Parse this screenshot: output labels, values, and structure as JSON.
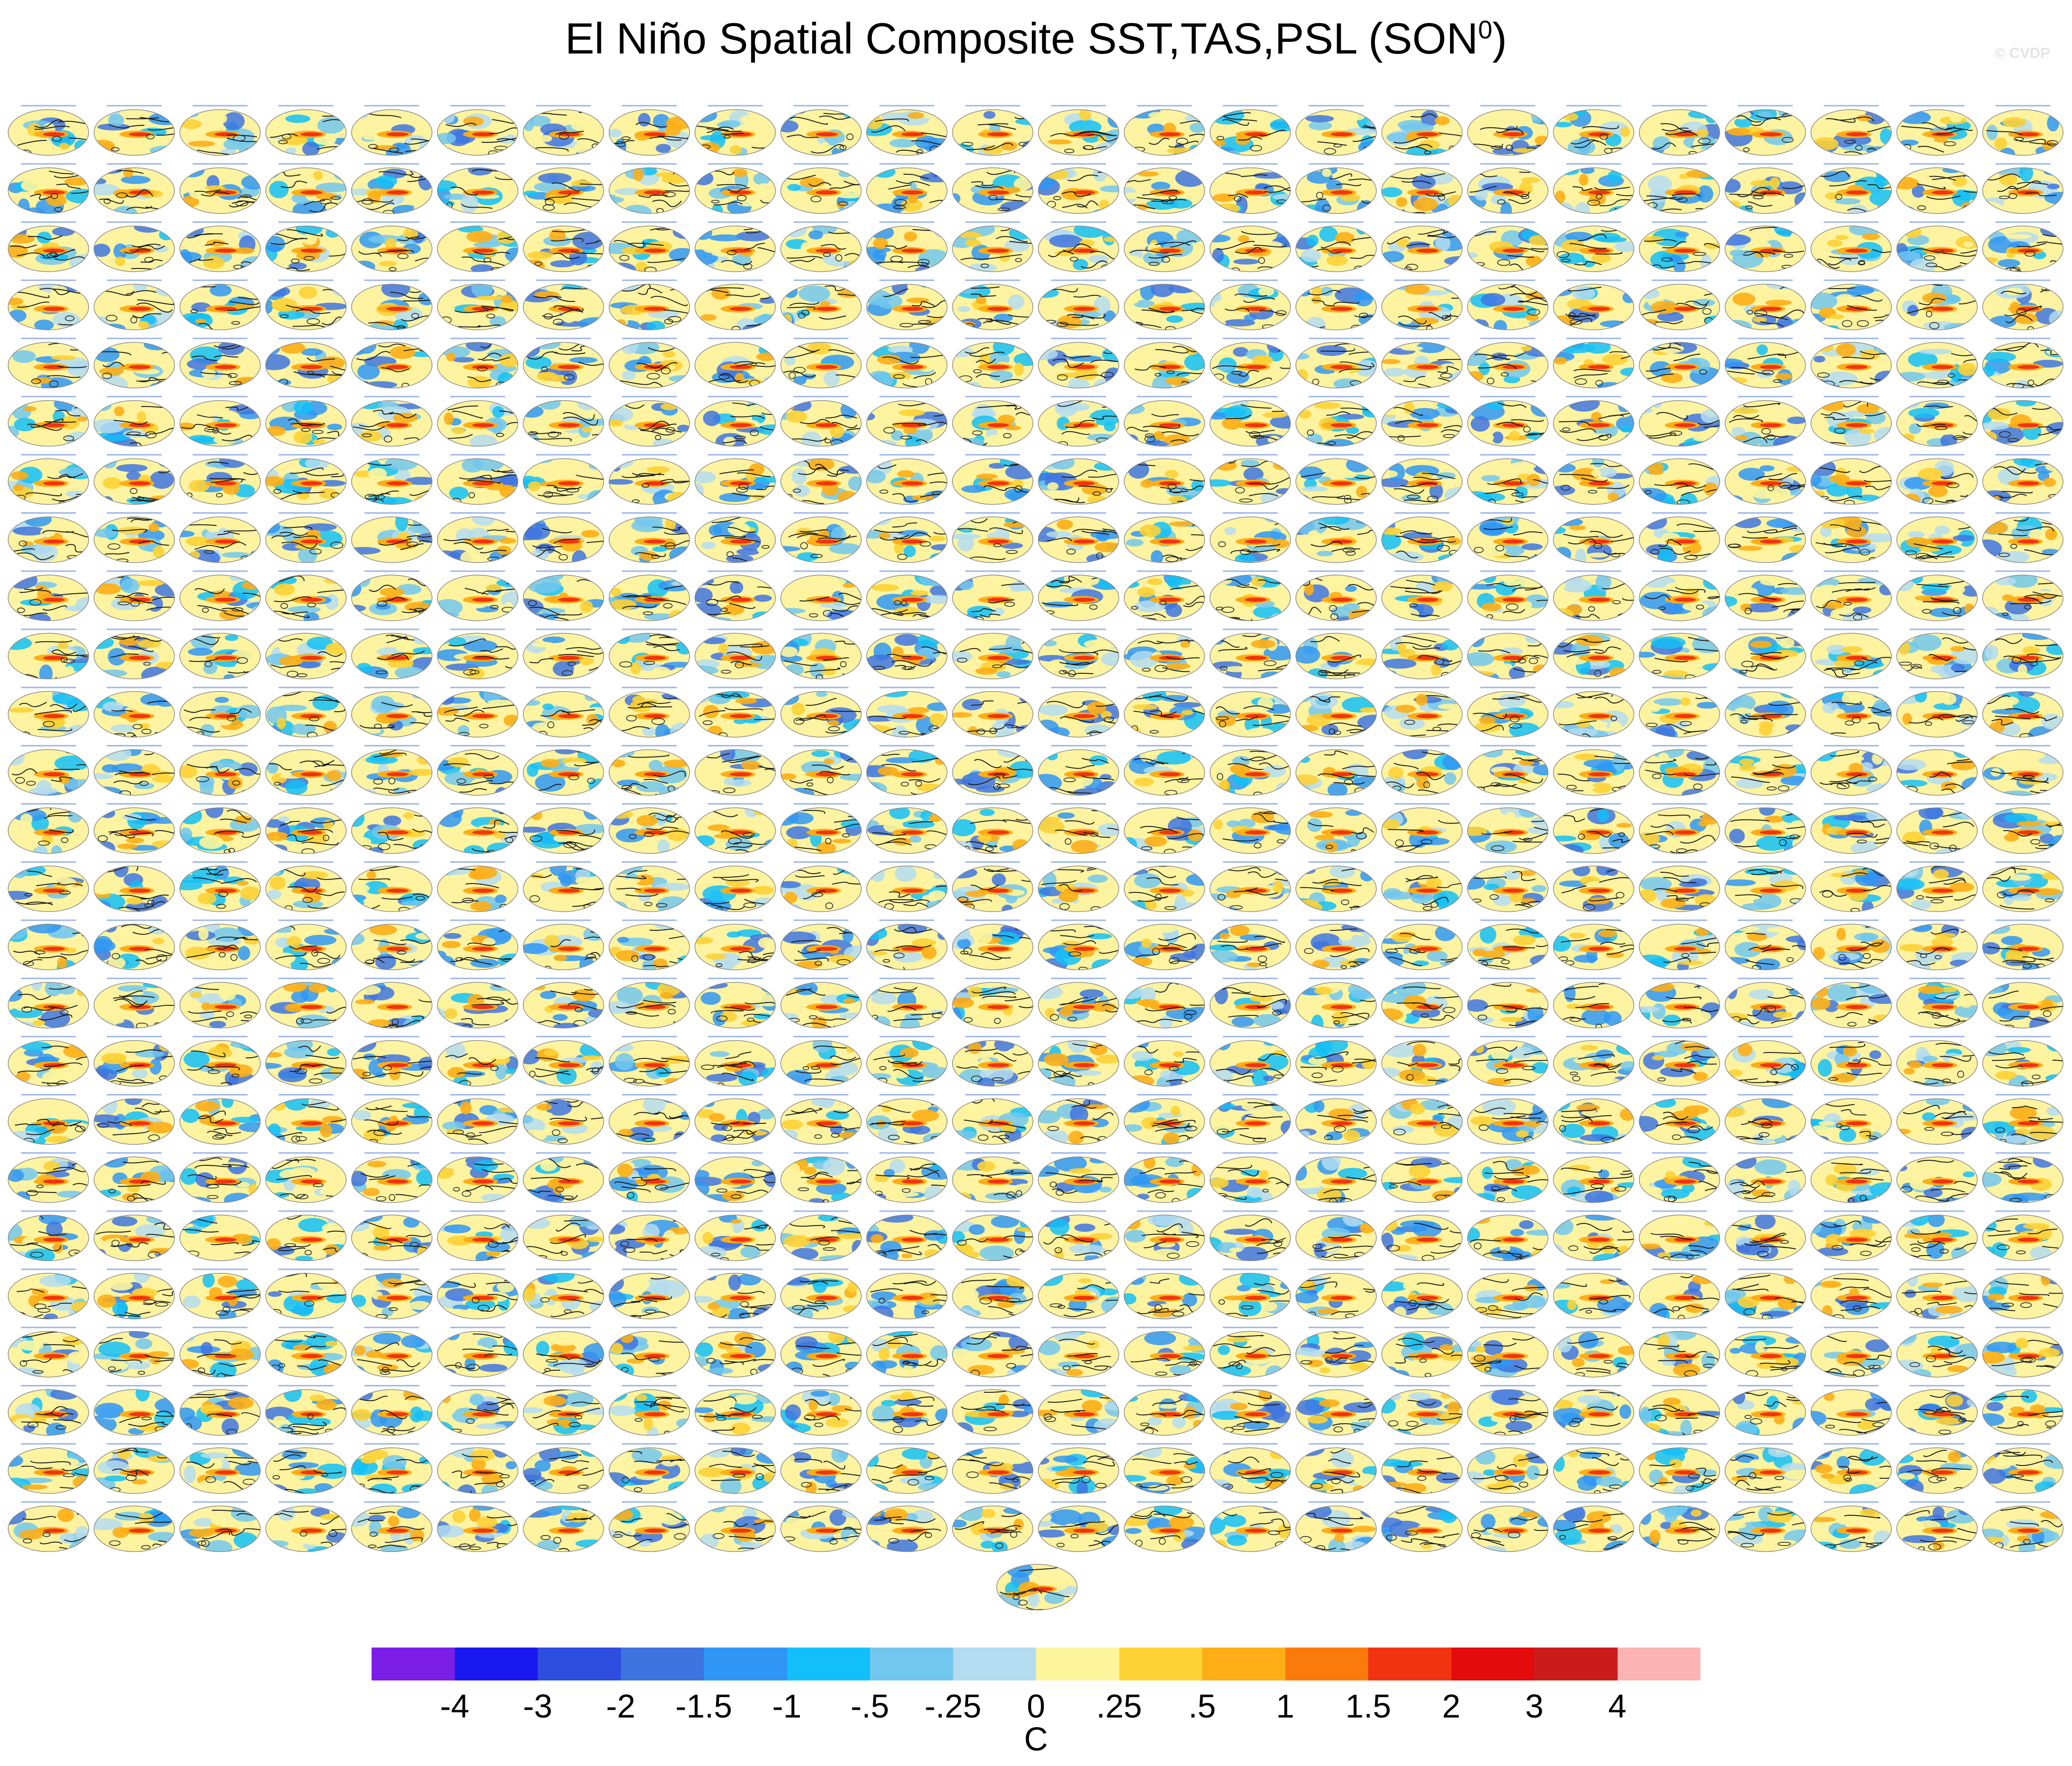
{
  "title": "El Niño Spatial Composite SST,TAS,PSL (SON",
  "title_superscript": "0",
  "title_close": ")",
  "watermark": "© CVDP",
  "grid": {
    "rows": 25,
    "cols": 24,
    "extra_panels": 1,
    "panel_description_icon": "globe-map-icon"
  },
  "colorbar": {
    "colors": [
      "#7c1fe6",
      "#1a18f0",
      "#2e4edf",
      "#3e74e0",
      "#2f96f5",
      "#12bff8",
      "#72c7ee",
      "#b4dcf0",
      "#fdf59c",
      "#fdd235",
      "#fdae16",
      "#fb7a0c",
      "#f23311",
      "#e30b0b",
      "#cc1b1b",
      "#fbb3b3"
    ],
    "labels": [
      "-4",
      "-3",
      "-2",
      "-1.5",
      "-1",
      "-.5",
      "-.25",
      "0",
      ".25",
      ".5",
      "1",
      "1.5",
      "2",
      "3",
      "4"
    ],
    "units": "C"
  }
}
